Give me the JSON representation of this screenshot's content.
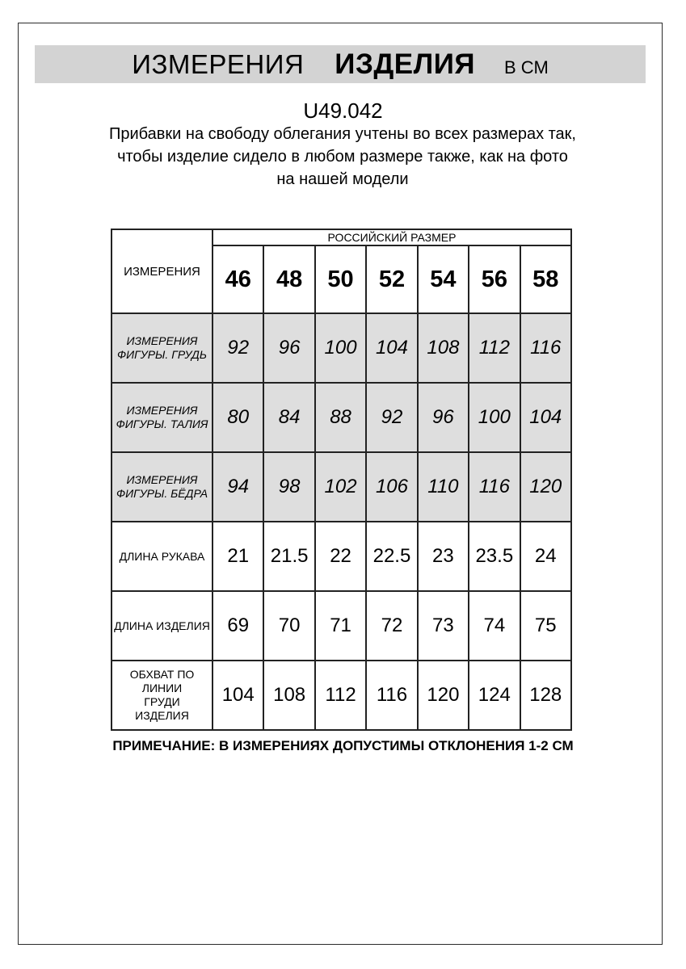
{
  "header": {
    "title_regular": "ИЗМЕРЕНИЯ",
    "title_bold": "ИЗДЕЛИЯ",
    "title_units": "В СМ"
  },
  "intro": {
    "article_code": "U49.042",
    "description": "Прибавки на свободу облегания учтены во всех размерах так, чтобы изделие сидело в любом размере также, как на фото на нашей модели"
  },
  "table": {
    "corner_header": "ИЗМЕРЕНИЯ",
    "group_header": "РОССИЙСКИЙ РАЗМЕР",
    "sizes": [
      "46",
      "48",
      "50",
      "52",
      "54",
      "56",
      "58"
    ],
    "rows": [
      {
        "label": "ИЗМЕРЕНИЯ ФИГУРЫ. ГРУДЬ",
        "values": [
          "92",
          "96",
          "100",
          "104",
          "108",
          "112",
          "116"
        ]
      },
      {
        "label": "ИЗМЕРЕНИЯ ФИГУРЫ. ТАЛИЯ",
        "values": [
          "80",
          "84",
          "88",
          "92",
          "96",
          "100",
          "104"
        ]
      },
      {
        "label": "ИЗМЕРЕНИЯ ФИГУРЫ. БЁДРА",
        "values": [
          "94",
          "98",
          "102",
          "106",
          "110",
          "116",
          "120"
        ]
      },
      {
        "label": "ДЛИНА РУКАВА",
        "values": [
          "21",
          "21.5",
          "22",
          "22.5",
          "23",
          "23.5",
          "24"
        ]
      },
      {
        "label": "ДЛИНА ИЗДЕЛИЯ",
        "values": [
          "69",
          "70",
          "71",
          "72",
          "73",
          "74",
          "75"
        ]
      },
      {
        "label": "ОБХВАТ ПО ЛИНИИ ГРУДИ ИЗДЕЛИЯ",
        "values": [
          "104",
          "108",
          "112",
          "116",
          "120",
          "124",
          "128"
        ]
      }
    ]
  },
  "note": "ПРИМЕЧАНИЕ: В ИЗМЕРЕНИЯХ ДОПУСТИМЫ ОТКЛОНЕНИЯ 1-2 СМ",
  "colors": {
    "header_bar_bg": "#d3d3d3",
    "shaded_row_bg": "#dedede",
    "table_border": "#222222",
    "text": "#000000"
  }
}
